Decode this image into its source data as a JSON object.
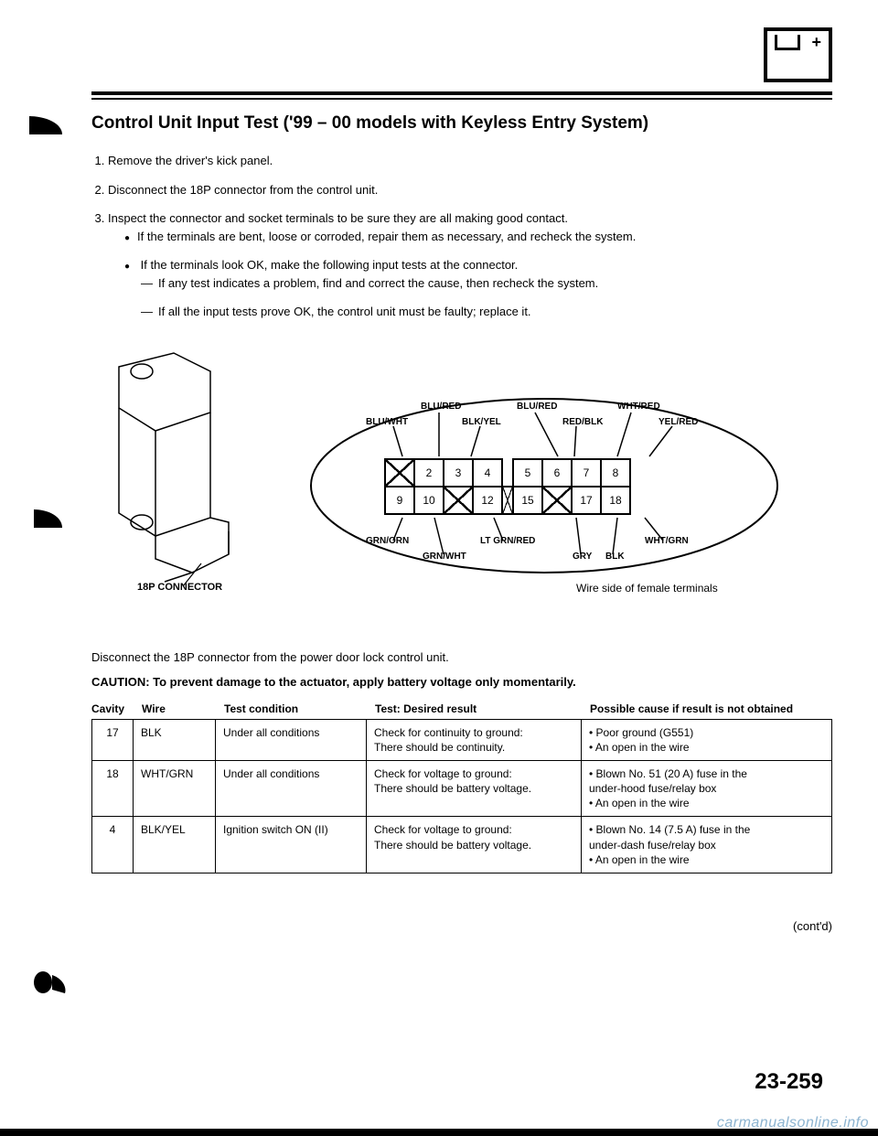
{
  "header": {
    "title": "Control Unit Input Test ('99 – 00 models with Keyless Entry System)"
  },
  "steps": {
    "s1": "Remove the driver's kick panel.",
    "s2": "Disconnect the 18P connector from the control unit.",
    "s3": "Inspect the connector and socket terminals to be sure they are all making good contact.",
    "s3b1": "If the terminals are bent, loose or corroded, repair them as necessary, and recheck the system.",
    "s3b2": "If the terminals look OK, make the following input tests at the connector.",
    "s3d1": "If any test indicates a problem, find and correct the cause, then recheck the system.",
    "s3d2": "If all the input tests prove OK, the control unit must be faulty; replace it."
  },
  "diagram": {
    "connector_caption": "18P CONNECTOR",
    "wire_caption": "Wire side of female terminals",
    "top_labels": {
      "blu_wht": "BLU/WHT",
      "blu_red1": "BLU/RED",
      "blk_yel": "BLK/YEL",
      "blu_red2": "BLU/RED",
      "red_blk": "RED/BLK",
      "wht_red": "WHT/RED",
      "yel_red": "YEL/RED"
    },
    "bot_labels": {
      "grn_orn": "GRN/ORN",
      "grn_wht": "GRN/WHT",
      "lt_grn_red": "LT GRN/RED",
      "gry": "GRY",
      "blk": "BLK",
      "wht_grn": "WHT/GRN"
    },
    "pins": {
      "r1": [
        "",
        "2",
        "3",
        "4",
        "",
        "5",
        "6",
        "7",
        "8"
      ],
      "r2": [
        "9",
        "10",
        "",
        "12",
        "",
        "15",
        "",
        "17",
        "18"
      ]
    }
  },
  "instruction": "Disconnect the 18P connector from the power door lock control unit.",
  "caution": "CAUTION: To prevent damage to the actuator, apply battery voltage only momentarily.",
  "table_headers": {
    "cavity": "Cavity",
    "wire": "Wire",
    "condition": "Test condition",
    "test": "Test: Desired result",
    "cause": "Possible cause if result is not obtained"
  },
  "rows": [
    {
      "cavity": "17",
      "wire": "BLK",
      "condition": "Under all conditions",
      "test": "Check for continuity to ground:\nThere should be continuity.",
      "cause": "• Poor ground (G551)\n• An open in the wire"
    },
    {
      "cavity": "18",
      "wire": "WHT/GRN",
      "condition": "Under all conditions",
      "test": "Check for voltage to ground:\nThere should be battery voltage.",
      "cause": "• Blown No. 51 (20 A) fuse in the\n  under-hood fuse/relay box\n• An open in the wire"
    },
    {
      "cavity": "4",
      "wire": "BLK/YEL",
      "condition": "Ignition switch ON (II)",
      "test": "Check for voltage to ground:\nThere should be battery voltage.",
      "cause": "• Blown No. 14 (7.5 A) fuse in the\n  under-dash fuse/relay box\n• An open in the wire"
    }
  ],
  "footer": {
    "contd": "(cont'd)",
    "pagenum": "23-259",
    "watermark": "carmanualsonline.info"
  },
  "colors": {
    "text": "#000000",
    "bg": "#ffffff",
    "watermark": "#7aa8c9"
  }
}
